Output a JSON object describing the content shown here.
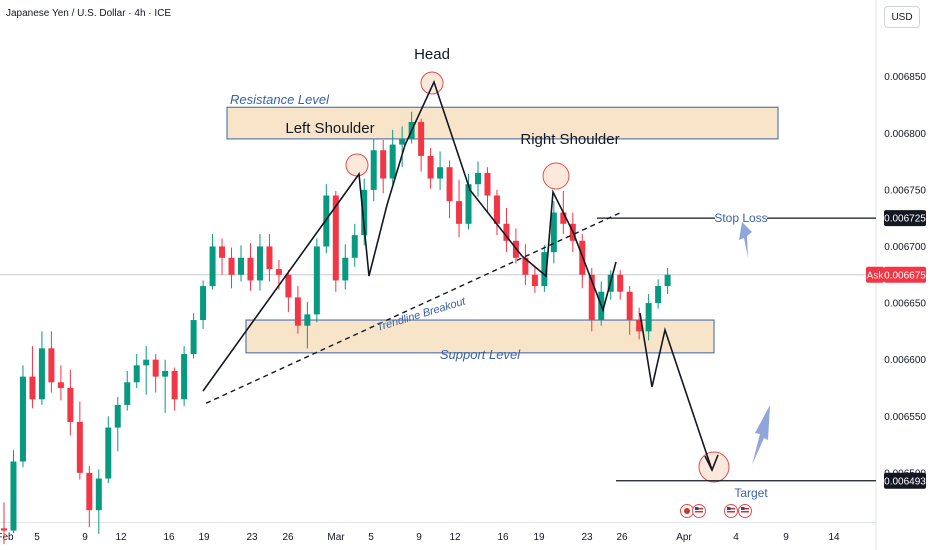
{
  "title": "Japanese Yen / U.S. Dollar · 4h · ICE",
  "currency": "USD",
  "colors": {
    "up": "#089981",
    "down": "#f23645",
    "zone_fill": "#f7e0c0",
    "zone_stroke": "#3a62a8",
    "accent_blue": "#3a62a8",
    "arrow_blue": "#7b95d6",
    "circle_stroke": "#e44d4d",
    "circle_fill": "#fbe2cf",
    "ask_tag": "#f23645",
    "price_tag": "#131722"
  },
  "labels": {
    "head": "Head",
    "left_shoulder": "Left Shoulder",
    "right_shoulder": "Right Shoulder",
    "resistance": "Resistance Level",
    "support": "Support Level",
    "trendline": "Trendline Breakout",
    "stop_loss": "Stop Loss",
    "target": "Target"
  },
  "tags": {
    "ask_label": "Ask",
    "ask_price": "0.006675",
    "stop_price": "0.006725",
    "target_price": "0.006493"
  },
  "chart_data": {
    "type": "candlestick",
    "title": "Japanese Yen / U.S. Dollar · 4h · ICE",
    "y_axis": {
      "ticks": [
        "0.006850",
        "0.006800",
        "0.006750",
        "0.006700",
        "0.006650",
        "0.006600",
        "0.006550",
        "0.006500"
      ],
      "ylim": [
        0.00643,
        0.00688
      ]
    },
    "x_axis": {
      "ticks": [
        "Feb",
        "5",
        "9",
        "12",
        "16",
        "19",
        "23",
        "26",
        "Mar",
        "5",
        "9",
        "12",
        "16",
        "19",
        "23",
        "26",
        "Apr",
        "4",
        "9",
        "14"
      ]
    },
    "levels": {
      "resistance_zone": [
        0.006795,
        0.006823
      ],
      "support_zone": [
        0.006606,
        0.006635
      ],
      "stop_loss": 0.006725,
      "target": 0.006493,
      "ask": 0.006675
    },
    "pattern": "head and shoulders",
    "neckline": {
      "start": [
        19,
        0.006565
      ],
      "end": [
        73,
        0.006715
      ]
    },
    "outline_path": [
      [
        19,
        0.006565
      ],
      [
        34,
        0.00675
      ],
      [
        36,
        0.00666
      ],
      [
        42,
        0.00669
      ],
      [
        44,
        0.0068
      ],
      [
        51,
        0.006815
      ],
      [
        56,
        0.00674
      ],
      [
        62,
        0.006665
      ],
      [
        63,
        0.006675
      ],
      [
        65,
        0.006745
      ],
      [
        71,
        0.006625
      ],
      [
        73,
        0.00668
      ]
    ],
    "projection_path": [
      [
        76.5,
        0.006615
      ],
      [
        78,
        0.00657
      ],
      [
        78.7,
        0.006615
      ],
      [
        84,
        0.006495
      ]
    ],
    "candles": [
      {
        "o": 0.006451,
        "h": 0.006474,
        "l": 0.006437,
        "c": 0.006449
      },
      {
        "o": 0.006449,
        "h": 0.00652,
        "l": 0.006447,
        "c": 0.00651
      },
      {
        "o": 0.00651,
        "h": 0.006595,
        "l": 0.006505,
        "c": 0.006585
      },
      {
        "o": 0.006585,
        "h": 0.006612,
        "l": 0.006557,
        "c": 0.006565
      },
      {
        "o": 0.006565,
        "h": 0.006625,
        "l": 0.00656,
        "c": 0.00661
      },
      {
        "o": 0.00661,
        "h": 0.006625,
        "l": 0.006571,
        "c": 0.00658
      },
      {
        "o": 0.00658,
        "h": 0.006595,
        "l": 0.006564,
        "c": 0.006575
      },
      {
        "o": 0.006575,
        "h": 0.006591,
        "l": 0.006533,
        "c": 0.006545
      },
      {
        "o": 0.006545,
        "h": 0.006563,
        "l": 0.006494,
        "c": 0.0065
      },
      {
        "o": 0.0065,
        "h": 0.006506,
        "l": 0.006452,
        "c": 0.006467
      },
      {
        "o": 0.006467,
        "h": 0.006503,
        "l": 0.006446,
        "c": 0.006495
      },
      {
        "o": 0.006495,
        "h": 0.00655,
        "l": 0.006491,
        "c": 0.00654
      },
      {
        "o": 0.00654,
        "h": 0.006567,
        "l": 0.006519,
        "c": 0.00656
      },
      {
        "o": 0.00656,
        "h": 0.00659,
        "l": 0.006555,
        "c": 0.00658
      },
      {
        "o": 0.00658,
        "h": 0.006605,
        "l": 0.006575,
        "c": 0.006595
      },
      {
        "o": 0.006595,
        "h": 0.006612,
        "l": 0.006569,
        "c": 0.0066
      },
      {
        "o": 0.0066,
        "h": 0.006605,
        "l": 0.006571,
        "c": 0.006585
      },
      {
        "o": 0.006585,
        "h": 0.0066,
        "l": 0.006553,
        "c": 0.00659
      },
      {
        "o": 0.00659,
        "h": 0.006593,
        "l": 0.006555,
        "c": 0.006565
      },
      {
        "o": 0.006565,
        "h": 0.006612,
        "l": 0.006559,
        "c": 0.006605
      },
      {
        "o": 0.006605,
        "h": 0.006641,
        "l": 0.006601,
        "c": 0.006635
      },
      {
        "o": 0.006635,
        "h": 0.00667,
        "l": 0.006627,
        "c": 0.006665
      },
      {
        "o": 0.006665,
        "h": 0.006711,
        "l": 0.006662,
        "c": 0.0067
      },
      {
        "o": 0.0067,
        "h": 0.006707,
        "l": 0.006675,
        "c": 0.00669
      },
      {
        "o": 0.00669,
        "h": 0.006699,
        "l": 0.006663,
        "c": 0.006675
      },
      {
        "o": 0.006675,
        "h": 0.006701,
        "l": 0.006669,
        "c": 0.00669
      },
      {
        "o": 0.00669,
        "h": 0.006703,
        "l": 0.006661,
        "c": 0.00667
      },
      {
        "o": 0.00667,
        "h": 0.006711,
        "l": 0.006661,
        "c": 0.0067
      },
      {
        "o": 0.0067,
        "h": 0.006711,
        "l": 0.006669,
        "c": 0.00668
      },
      {
        "o": 0.00668,
        "h": 0.006688,
        "l": 0.006662,
        "c": 0.006675
      },
      {
        "o": 0.006675,
        "h": 0.006679,
        "l": 0.006642,
        "c": 0.006655
      },
      {
        "o": 0.006655,
        "h": 0.006665,
        "l": 0.006623,
        "c": 0.00663
      },
      {
        "o": 0.00663,
        "h": 0.006651,
        "l": 0.00661,
        "c": 0.00664
      },
      {
        "o": 0.00664,
        "h": 0.006707,
        "l": 0.006633,
        "c": 0.0067
      },
      {
        "o": 0.0067,
        "h": 0.006755,
        "l": 0.006694,
        "c": 0.006745
      },
      {
        "o": 0.006745,
        "h": 0.006749,
        "l": 0.00666,
        "c": 0.00667
      },
      {
        "o": 0.00667,
        "h": 0.006702,
        "l": 0.006662,
        "c": 0.00669
      },
      {
        "o": 0.00669,
        "h": 0.00672,
        "l": 0.006682,
        "c": 0.00671
      },
      {
        "o": 0.00671,
        "h": 0.00676,
        "l": 0.006701,
        "c": 0.00675
      },
      {
        "o": 0.00675,
        "h": 0.006795,
        "l": 0.00674,
        "c": 0.006785
      },
      {
        "o": 0.006785,
        "h": 0.006794,
        "l": 0.006747,
        "c": 0.00676
      },
      {
        "o": 0.00676,
        "h": 0.006803,
        "l": 0.006755,
        "c": 0.00679
      },
      {
        "o": 0.00679,
        "h": 0.006806,
        "l": 0.00677,
        "c": 0.006795
      },
      {
        "o": 0.006795,
        "h": 0.006819,
        "l": 0.006791,
        "c": 0.00681
      },
      {
        "o": 0.00681,
        "h": 0.006813,
        "l": 0.006766,
        "c": 0.00678
      },
      {
        "o": 0.00678,
        "h": 0.006787,
        "l": 0.006751,
        "c": 0.00676
      },
      {
        "o": 0.00676,
        "h": 0.006784,
        "l": 0.00675,
        "c": 0.00677
      },
      {
        "o": 0.00677,
        "h": 0.006776,
        "l": 0.006725,
        "c": 0.00674
      },
      {
        "o": 0.00674,
        "h": 0.006759,
        "l": 0.006708,
        "c": 0.00672
      },
      {
        "o": 0.00672,
        "h": 0.006764,
        "l": 0.006715,
        "c": 0.006755
      },
      {
        "o": 0.006755,
        "h": 0.006775,
        "l": 0.006744,
        "c": 0.006765
      },
      {
        "o": 0.006765,
        "h": 0.00677,
        "l": 0.00673,
        "c": 0.006745
      },
      {
        "o": 0.006745,
        "h": 0.00675,
        "l": 0.00671,
        "c": 0.00672
      },
      {
        "o": 0.00672,
        "h": 0.006734,
        "l": 0.006695,
        "c": 0.006705
      },
      {
        "o": 0.006705,
        "h": 0.006716,
        "l": 0.006685,
        "c": 0.00669
      },
      {
        "o": 0.00669,
        "h": 0.006702,
        "l": 0.006666,
        "c": 0.006675
      },
      {
        "o": 0.006675,
        "h": 0.006683,
        "l": 0.006659,
        "c": 0.006665
      },
      {
        "o": 0.006665,
        "h": 0.006701,
        "l": 0.00666,
        "c": 0.006695
      },
      {
        "o": 0.006695,
        "h": 0.00674,
        "l": 0.006685,
        "c": 0.00673
      },
      {
        "o": 0.00673,
        "h": 0.006749,
        "l": 0.006711,
        "c": 0.00672
      },
      {
        "o": 0.00672,
        "h": 0.00673,
        "l": 0.006695,
        "c": 0.006705
      },
      {
        "o": 0.006705,
        "h": 0.006711,
        "l": 0.006663,
        "c": 0.006675
      },
      {
        "o": 0.006675,
        "h": 0.006681,
        "l": 0.006625,
        "c": 0.006635
      },
      {
        "o": 0.006635,
        "h": 0.006669,
        "l": 0.00663,
        "c": 0.00666
      },
      {
        "o": 0.00666,
        "h": 0.006679,
        "l": 0.006653,
        "c": 0.006675
      },
      {
        "o": 0.006675,
        "h": 0.006679,
        "l": 0.006653,
        "c": 0.00666
      },
      {
        "o": 0.00666,
        "h": 0.006665,
        "l": 0.006622,
        "c": 0.006635
      },
      {
        "o": 0.006635,
        "h": 0.006646,
        "l": 0.006618,
        "c": 0.006625
      },
      {
        "o": 0.006625,
        "h": 0.006658,
        "l": 0.006617,
        "c": 0.00665
      },
      {
        "o": 0.00665,
        "h": 0.006671,
        "l": 0.006645,
        "c": 0.006665
      },
      {
        "o": 0.006665,
        "h": 0.006681,
        "l": 0.006658,
        "c": 0.006675
      }
    ]
  }
}
